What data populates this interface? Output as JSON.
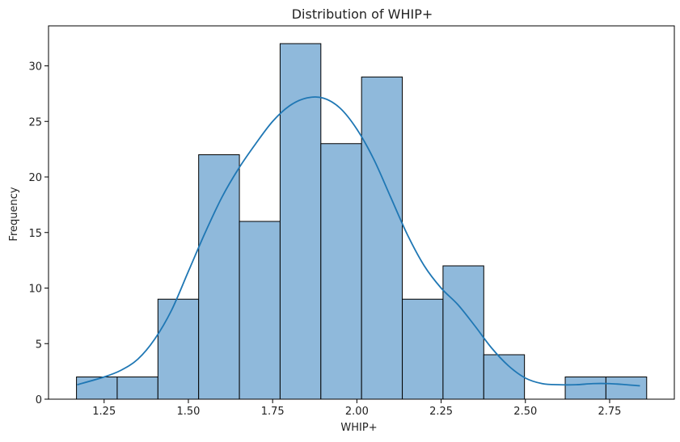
{
  "chart_data": {
    "type": "bar",
    "title": "Distribution of WHIP+",
    "xlabel": "WHIP+",
    "ylabel": "Frequency",
    "bin_edges": [
      1.168,
      1.2888,
      1.4097,
      1.5305,
      1.6514,
      1.7722,
      1.8931,
      2.0139,
      2.1348,
      2.2556,
      2.3765,
      2.4973,
      2.6182,
      2.739,
      2.8599
    ],
    "values": [
      2,
      2,
      9,
      22,
      16,
      32,
      23,
      29,
      9,
      12,
      4,
      0,
      2,
      2
    ],
    "xlim": [
      1.085,
      2.942
    ],
    "ylim": [
      0,
      33.6
    ],
    "xticks": [
      1.25,
      1.5,
      1.75,
      2.0,
      2.25,
      2.5,
      2.75
    ],
    "xtick_labels": [
      "1.25",
      "1.50",
      "1.75",
      "2.00",
      "2.25",
      "2.50",
      "2.75"
    ],
    "yticks": [
      0,
      5,
      10,
      15,
      20,
      25,
      30
    ],
    "ytick_labels": [
      "0",
      "5",
      "10",
      "15",
      "20",
      "25",
      "30"
    ],
    "kde": {
      "x": [
        1.17,
        1.25,
        1.3,
        1.35,
        1.4,
        1.45,
        1.5,
        1.55,
        1.6,
        1.65,
        1.7,
        1.75,
        1.8,
        1.85,
        1.9,
        1.95,
        2.0,
        2.05,
        2.1,
        2.15,
        2.2,
        2.25,
        2.3,
        2.35,
        2.4,
        2.45,
        2.5,
        2.55,
        2.6,
        2.65,
        2.7,
        2.75,
        2.8,
        2.84
      ],
      "y": [
        1.3,
        2.0,
        2.6,
        3.6,
        5.4,
        8.0,
        11.5,
        15.0,
        18.2,
        20.8,
        23.0,
        25.0,
        26.4,
        27.1,
        27.1,
        26.2,
        24.3,
        21.6,
        18.2,
        14.8,
        12.0,
        10.0,
        8.5,
        6.6,
        4.6,
        3.0,
        1.9,
        1.4,
        1.3,
        1.3,
        1.4,
        1.4,
        1.3,
        1.2
      ]
    },
    "grid": false,
    "legend": "none",
    "bar_fill": "#8fb9db",
    "bar_edge": "#000000",
    "kde_color": "#1f77b4"
  }
}
